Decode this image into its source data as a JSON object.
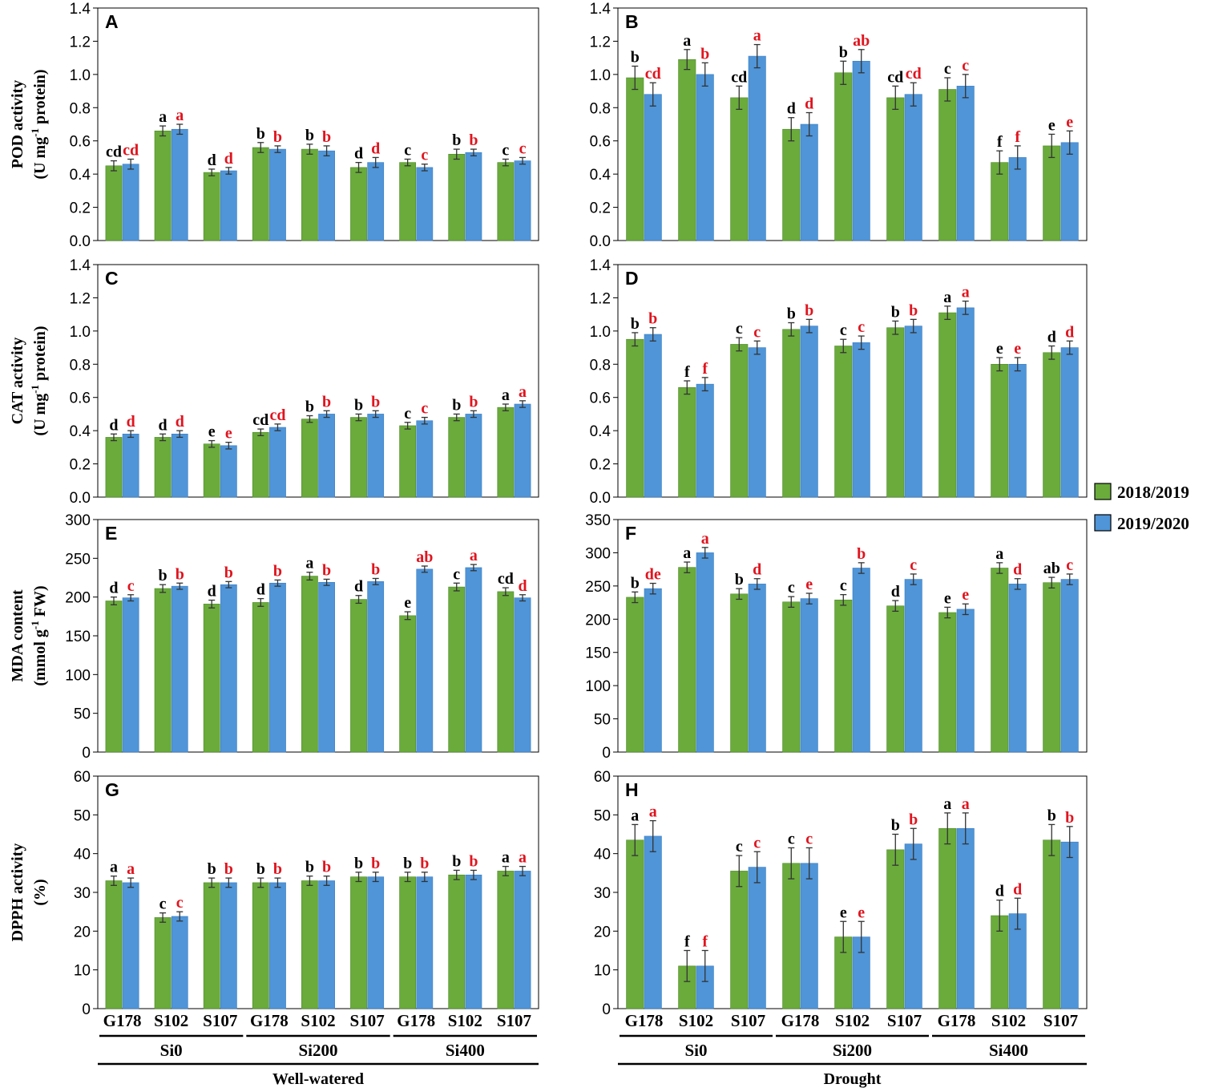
{
  "colors": {
    "s1": "#6aab3c",
    "s2": "#4f95d8",
    "sig1": "#000000",
    "sig2": "#e0141e"
  },
  "legend": [
    "2018/2019",
    "2019/2020"
  ],
  "categories": [
    "G178",
    "S102",
    "S107",
    "G178",
    "S102",
    "S107",
    "G178",
    "S102",
    "S107"
  ],
  "groups": [
    "Si0",
    "Si200",
    "Si400"
  ],
  "conditions": [
    "Well-watered",
    "Drought"
  ],
  "ylabels": [
    [
      "POD activity",
      "(U mg",
      "-1",
      " protein)"
    ],
    [
      "CAT activity",
      "(U mg",
      "-1",
      " protein)"
    ],
    [
      "MDA content",
      "(mmol  g",
      "-1",
      " FW)"
    ],
    [
      "DPPH activity",
      "(%)"
    ]
  ],
  "chart_data": [
    {
      "panel": "A",
      "type": "bar",
      "ylim": [
        0,
        1.4
      ],
      "yticks": [
        "0.0",
        "0.2",
        "0.4",
        "0.6",
        "0.8",
        "1.0",
        "1.2",
        "1.4"
      ],
      "series": [
        {
          "name": "2018/2019",
          "values": [
            0.45,
            0.66,
            0.41,
            0.56,
            0.55,
            0.44,
            0.47,
            0.52,
            0.47
          ],
          "err": [
            0.03,
            0.03,
            0.02,
            0.03,
            0.03,
            0.03,
            0.02,
            0.03,
            0.02
          ],
          "letters": [
            "cd",
            "a",
            "d",
            "b",
            "b",
            "d",
            "c",
            "b",
            "c"
          ]
        },
        {
          "name": "2019/2020",
          "values": [
            0.46,
            0.67,
            0.42,
            0.55,
            0.54,
            0.47,
            0.44,
            0.53,
            0.48
          ],
          "err": [
            0.03,
            0.03,
            0.02,
            0.02,
            0.03,
            0.03,
            0.02,
            0.02,
            0.02
          ],
          "letters": [
            "cd",
            "a",
            "d",
            "b",
            "b",
            "d",
            "c",
            "b",
            "c"
          ]
        }
      ]
    },
    {
      "panel": "B",
      "type": "bar",
      "ylim": [
        0,
        1.4
      ],
      "yticks": [
        "0.0",
        "0.2",
        "0.4",
        "0.6",
        "0.8",
        "1.0",
        "1.2",
        "1.4"
      ],
      "series": [
        {
          "name": "2018/2019",
          "values": [
            0.98,
            1.09,
            0.86,
            0.67,
            1.01,
            0.86,
            0.91,
            0.47,
            0.57
          ],
          "err": [
            0.07,
            0.06,
            0.07,
            0.07,
            0.07,
            0.07,
            0.07,
            0.07,
            0.07
          ],
          "letters": [
            "b",
            "a",
            "cd",
            "d",
            "b",
            "cd",
            "c",
            "f",
            "e"
          ]
        },
        {
          "name": "2019/2020",
          "values": [
            0.88,
            1.0,
            1.11,
            0.7,
            1.08,
            0.88,
            0.93,
            0.5,
            0.59
          ],
          "err": [
            0.07,
            0.07,
            0.07,
            0.07,
            0.07,
            0.07,
            0.07,
            0.07,
            0.07
          ],
          "letters": [
            "cd",
            "b",
            "a",
            "d",
            "ab",
            "cd",
            "c",
            "f",
            "e"
          ]
        }
      ]
    },
    {
      "panel": "C",
      "type": "bar",
      "ylim": [
        0,
        1.4
      ],
      "yticks": [
        "0.0",
        "0.2",
        "0.4",
        "0.6",
        "0.8",
        "1.0",
        "1.2",
        "1.4"
      ],
      "series": [
        {
          "name": "2018/2019",
          "values": [
            0.36,
            0.36,
            0.32,
            0.39,
            0.47,
            0.48,
            0.43,
            0.48,
            0.54
          ],
          "err": [
            0.02,
            0.02,
            0.02,
            0.02,
            0.02,
            0.02,
            0.02,
            0.02,
            0.02
          ],
          "letters": [
            "d",
            "d",
            "e",
            "cd",
            "b",
            "b",
            "c",
            "b",
            "a"
          ]
        },
        {
          "name": "2019/2020",
          "values": [
            0.38,
            0.38,
            0.31,
            0.42,
            0.5,
            0.5,
            0.46,
            0.5,
            0.56
          ],
          "err": [
            0.02,
            0.02,
            0.02,
            0.02,
            0.02,
            0.02,
            0.02,
            0.02,
            0.02
          ],
          "letters": [
            "d",
            "d",
            "e",
            "cd",
            "b",
            "b",
            "c",
            "b",
            "a"
          ]
        }
      ]
    },
    {
      "panel": "D",
      "type": "bar",
      "ylim": [
        0,
        1.4
      ],
      "yticks": [
        "0.0",
        "0.2",
        "0.4",
        "0.6",
        "0.8",
        "1.0",
        "1.2",
        "1.4"
      ],
      "series": [
        {
          "name": "2018/2019",
          "values": [
            0.95,
            0.66,
            0.92,
            1.01,
            0.91,
            1.02,
            1.11,
            0.8,
            0.87
          ],
          "err": [
            0.04,
            0.04,
            0.04,
            0.04,
            0.04,
            0.04,
            0.04,
            0.04,
            0.04
          ],
          "letters": [
            "b",
            "f",
            "c",
            "b",
            "c",
            "b",
            "a",
            "e",
            "d"
          ]
        },
        {
          "name": "2019/2020",
          "values": [
            0.98,
            0.68,
            0.9,
            1.03,
            0.93,
            1.03,
            1.14,
            0.8,
            0.9
          ],
          "err": [
            0.04,
            0.04,
            0.04,
            0.04,
            0.04,
            0.04,
            0.04,
            0.04,
            0.04
          ],
          "letters": [
            "b",
            "f",
            "c",
            "b",
            "c",
            "b",
            "a",
            "e",
            "d"
          ]
        }
      ]
    },
    {
      "panel": "E",
      "type": "bar",
      "ylim": [
        0,
        300
      ],
      "yticks": [
        "0",
        "50",
        "100",
        "150",
        "200",
        "250",
        "300"
      ],
      "series": [
        {
          "name": "2018/2019",
          "values": [
            195,
            211,
            191,
            193,
            227,
            197,
            176,
            213,
            207
          ],
          "err": [
            5,
            5,
            5,
            5,
            5,
            5,
            5,
            5,
            5
          ],
          "letters": [
            "d",
            "b",
            "d",
            "d",
            "a",
            "d",
            "e",
            "c",
            "cd"
          ]
        },
        {
          "name": "2019/2020",
          "values": [
            199,
            214,
            216,
            218,
            219,
            220,
            236,
            238,
            199
          ],
          "err": [
            4,
            4,
            4,
            4,
            4,
            4,
            4,
            4,
            4
          ],
          "letters": [
            "c",
            "b",
            "b",
            "b",
            "b",
            "b",
            "ab",
            "a",
            "d"
          ]
        }
      ]
    },
    {
      "panel": "F",
      "type": "bar",
      "ylim": [
        0,
        350
      ],
      "yticks": [
        "0",
        "50",
        "100",
        "150",
        "200",
        "250",
        "300",
        "350"
      ],
      "series": [
        {
          "name": "2018/2019",
          "values": [
            233,
            278,
            238,
            226,
            229,
            220,
            210,
            277,
            255
          ],
          "err": [
            8,
            8,
            8,
            8,
            8,
            8,
            8,
            8,
            8
          ],
          "letters": [
            "b",
            "a",
            "b",
            "c",
            "c",
            "d",
            "e",
            "a",
            "ab"
          ]
        },
        {
          "name": "2019/2020",
          "values": [
            246,
            300,
            253,
            231,
            277,
            260,
            215,
            253,
            260
          ],
          "err": [
            8,
            8,
            8,
            8,
            8,
            8,
            8,
            8,
            8
          ],
          "letters": [
            "de",
            "a",
            "d",
            "e",
            "b",
            "c",
            "e",
            "d",
            "c"
          ]
        }
      ]
    },
    {
      "panel": "G",
      "type": "bar",
      "ylim": [
        0,
        60
      ],
      "yticks": [
        "0",
        "10",
        "20",
        "30",
        "40",
        "50",
        "60"
      ],
      "series": [
        {
          "name": "2018/2019",
          "values": [
            33,
            23.5,
            32.5,
            32.5,
            33,
            34,
            34,
            34.5,
            35.5
          ],
          "err": [
            1.2,
            1.2,
            1.2,
            1.2,
            1.2,
            1.2,
            1.2,
            1.2,
            1.2
          ],
          "letters": [
            "a",
            "c",
            "b",
            "b",
            "b",
            "b",
            "b",
            "b",
            "a"
          ]
        },
        {
          "name": "2019/2020",
          "values": [
            32.5,
            23.8,
            32.5,
            32.5,
            33,
            34,
            34,
            34.5,
            35.5
          ],
          "err": [
            1.2,
            1.2,
            1.2,
            1.2,
            1.2,
            1.2,
            1.2,
            1.2,
            1.2
          ],
          "letters": [
            "a",
            "c",
            "b",
            "b",
            "b",
            "b",
            "b",
            "b",
            "a"
          ]
        }
      ]
    },
    {
      "panel": "H",
      "type": "bar",
      "ylim": [
        0,
        60
      ],
      "yticks": [
        "0",
        "10",
        "20",
        "30",
        "40",
        "50",
        "60"
      ],
      "series": [
        {
          "name": "2018/2019",
          "values": [
            43.5,
            11,
            35.5,
            37.5,
            18.5,
            41,
            46.5,
            24,
            43.5
          ],
          "err": [
            4,
            4,
            4,
            4,
            4,
            4,
            4,
            4,
            4
          ],
          "letters": [
            "a",
            "f",
            "c",
            "c",
            "e",
            "b",
            "a",
            "d",
            "b"
          ]
        },
        {
          "name": "2019/2020",
          "values": [
            44.5,
            11,
            36.5,
            37.5,
            18.5,
            42.5,
            46.5,
            24.5,
            43
          ],
          "err": [
            4,
            4,
            4,
            4,
            4,
            4,
            4,
            4,
            4
          ],
          "letters": [
            "a",
            "f",
            "c",
            "c",
            "e",
            "b",
            "a",
            "d",
            "b"
          ]
        }
      ]
    }
  ]
}
